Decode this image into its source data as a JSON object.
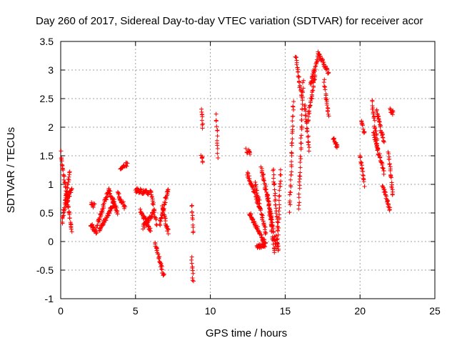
{
  "chart_data": {
    "type": "scatter",
    "title": "Day 260 of 2017, Sidereal Day-to-day VTEC variation (SDTVAR) for receiver acor",
    "xlabel": "GPS time / hours",
    "ylabel": "SDTVAR / TECUs",
    "xlim": [
      0,
      25
    ],
    "ylim": [
      -1,
      3.5
    ],
    "xticks": [
      "0",
      "5",
      "10",
      "15",
      "20",
      "25"
    ],
    "yticks": [
      "-1",
      "-0.5",
      "0",
      "0.5",
      "1",
      "1.5",
      "2",
      "2.5",
      "3",
      "3.5"
    ],
    "grid": true,
    "marker": "+",
    "color": "#ff0000",
    "series": [
      {
        "name": "SDTVAR",
        "segments": [
          {
            "x": [
              0.0,
              0.75
            ],
            "y": [
              1.55,
              0.15
            ]
          },
          {
            "x": [
              0.1,
              0.6
            ],
            "y": [
              0.35,
              1.2
            ]
          },
          {
            "x": [
              0.3,
              0.75
            ],
            "y": [
              0.6,
              0.95
            ]
          },
          {
            "x": [
              2.05,
              2.25
            ],
            "y": [
              0.65,
              0.62
            ]
          },
          {
            "x": [
              2.0,
              2.4
            ],
            "y": [
              0.3,
              0.15
            ]
          },
          {
            "x": [
              2.4,
              3.2
            ],
            "y": [
              0.25,
              0.9
            ]
          },
          {
            "x": [
              2.6,
              3.6
            ],
            "y": [
              0.2,
              0.7
            ]
          },
          {
            "x": [
              3.2,
              3.8
            ],
            "y": [
              0.9,
              0.5
            ]
          },
          {
            "x": [
              3.8,
              4.3
            ],
            "y": [
              0.85,
              0.6
            ]
          },
          {
            "x": [
              4.0,
              4.2
            ],
            "y": [
              1.25,
              1.3
            ]
          },
          {
            "x": [
              4.3,
              4.45
            ],
            "y": [
              1.35,
              1.35
            ]
          },
          {
            "x": [
              5.0,
              5.9
            ],
            "y": [
              0.9,
              0.85
            ]
          },
          {
            "x": [
              5.3,
              6.0
            ],
            "y": [
              0.55,
              0.2
            ]
          },
          {
            "x": [
              5.5,
              6.2
            ],
            "y": [
              0.25,
              0.5
            ]
          },
          {
            "x": [
              6.0,
              6.4
            ],
            "y": [
              0.9,
              0.3
            ]
          },
          {
            "x": [
              6.3,
              6.9
            ],
            "y": [
              -0.05,
              -0.6
            ]
          },
          {
            "x": [
              6.6,
              7.2
            ],
            "y": [
              0.3,
              0.95
            ]
          },
          {
            "x": [
              6.8,
              7.2
            ],
            "y": [
              0.6,
              0.15
            ]
          },
          {
            "x": [
              8.75,
              8.85
            ],
            "y": [
              0.65,
              0.15
            ]
          },
          {
            "x": [
              8.75,
              8.85
            ],
            "y": [
              -0.3,
              -0.7
            ]
          },
          {
            "x": [
              9.4,
              9.5
            ],
            "y": [
              2.3,
              2.0
            ]
          },
          {
            "x": [
              9.4,
              9.5
            ],
            "y": [
              1.5,
              1.4
            ]
          },
          {
            "x": [
              10.4,
              10.5
            ],
            "y": [
              2.2,
              1.5
            ]
          },
          {
            "x": [
              12.4,
              12.65
            ],
            "y": [
              1.6,
              1.55
            ]
          },
          {
            "x": [
              12.45,
              13.3
            ],
            "y": [
              1.2,
              0.6
            ]
          },
          {
            "x": [
              12.6,
              13.6
            ],
            "y": [
              0.5,
              0.0
            ]
          },
          {
            "x": [
              13.0,
              13.7
            ],
            "y": [
              1.0,
              0.15
            ]
          },
          {
            "x": [
              13.1,
              13.7
            ],
            "y": [
              -0.1,
              -0.05
            ]
          },
          {
            "x": [
              13.4,
              14.1
            ],
            "y": [
              1.3,
              0.4
            ]
          },
          {
            "x": [
              13.8,
              14.3
            ],
            "y": [
              0.85,
              -0.2
            ]
          },
          {
            "x": [
              14.0,
              14.4
            ],
            "y": [
              0.5,
              -0.1
            ]
          },
          {
            "x": [
              14.2,
              14.5
            ],
            "y": [
              1.25,
              0.2
            ]
          },
          {
            "x": [
              14.4,
              14.55
            ],
            "y": [
              0.1,
              -0.15
            ]
          },
          {
            "x": [
              14.5,
              14.7
            ],
            "y": [
              0.0,
              1.25
            ]
          },
          {
            "x": [
              15.3,
              15.55
            ],
            "y": [
              0.55,
              2.45
            ]
          },
          {
            "x": [
              15.7,
              16.1
            ],
            "y": [
              3.25,
              2.5
            ]
          },
          {
            "x": [
              15.9,
              16.2
            ],
            "y": [
              0.6,
              2.8
            ]
          },
          {
            "x": [
              16.3,
              16.6
            ],
            "y": [
              2.4,
              1.6
            ]
          },
          {
            "x": [
              16.5,
              17.0
            ],
            "y": [
              2.1,
              2.9
            ]
          },
          {
            "x": [
              16.7,
              17.2
            ],
            "y": [
              2.75,
              3.25
            ]
          },
          {
            "x": [
              17.2,
              17.9
            ],
            "y": [
              3.3,
              2.95
            ]
          },
          {
            "x": [
              17.6,
              17.9
            ],
            "y": [
              2.8,
              2.2
            ]
          },
          {
            "x": [
              18.2,
              18.5
            ],
            "y": [
              1.8,
              1.65
            ]
          },
          {
            "x": [
              20.0,
              20.3
            ],
            "y": [
              1.5,
              1.0
            ]
          },
          {
            "x": [
              20.1,
              20.3
            ],
            "y": [
              2.1,
              1.9
            ]
          },
          {
            "x": [
              20.8,
              21.2
            ],
            "y": [
              2.45,
              1.6
            ]
          },
          {
            "x": [
              20.9,
              21.6
            ],
            "y": [
              1.9,
              1.2
            ]
          },
          {
            "x": [
              21.1,
              21.6
            ],
            "y": [
              2.3,
              1.75
            ]
          },
          {
            "x": [
              21.5,
              22.0
            ],
            "y": [
              1.0,
              0.55
            ]
          },
          {
            "x": [
              21.9,
              22.2
            ],
            "y": [
              1.55,
              0.8
            ]
          },
          {
            "x": [
              22.0,
              22.2
            ],
            "y": [
              2.3,
              2.25
            ]
          }
        ]
      }
    ]
  }
}
